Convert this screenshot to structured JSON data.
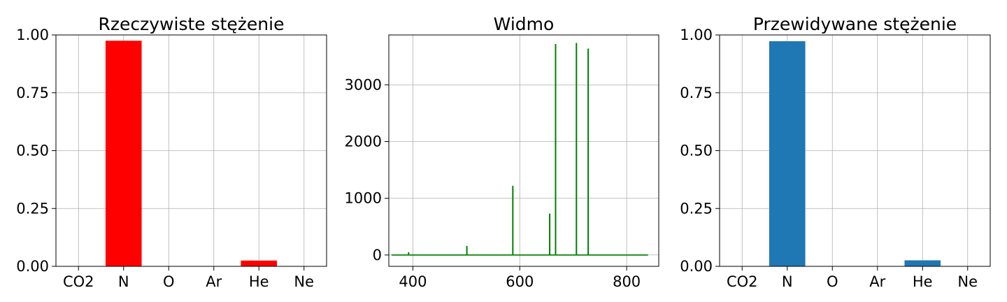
{
  "chart_data": [
    {
      "type": "bar",
      "title": "Rzeczywiste stężenie",
      "categories": [
        "CO2",
        "N",
        "O",
        "Ar",
        "He",
        "Ne"
      ],
      "values": [
        0.0,
        0.975,
        0.0,
        0.0,
        0.025,
        0.0
      ],
      "ylim": [
        0,
        1.0
      ],
      "yticks": [
        "0.00",
        "0.25",
        "0.50",
        "0.75",
        "1.00"
      ],
      "grid": true,
      "color": "#ff0000"
    },
    {
      "type": "line",
      "title": "Widmo",
      "xlim": [
        355,
        860
      ],
      "ylim": [
        -200,
        3880
      ],
      "xticks": [
        "400",
        "600",
        "800"
      ],
      "yticks": [
        "0",
        "1000",
        "2000",
        "3000"
      ],
      "baseline": 0,
      "x_range": [
        360,
        840
      ],
      "peaks": [
        {
          "x": 392,
          "y": 50
        },
        {
          "x": 501,
          "y": 160
        },
        {
          "x": 587,
          "y": 1220
        },
        {
          "x": 656,
          "y": 730
        },
        {
          "x": 667,
          "y": 3720
        },
        {
          "x": 706,
          "y": 3740
        },
        {
          "x": 728,
          "y": 3640
        }
      ],
      "grid": true,
      "color": "#008000"
    },
    {
      "type": "bar",
      "title": "Przewidywane stężenie",
      "categories": [
        "CO2",
        "N",
        "O",
        "Ar",
        "He",
        "Ne"
      ],
      "values": [
        0.0,
        0.973,
        0.0,
        0.0,
        0.026,
        0.0
      ],
      "ylim": [
        0,
        1.0
      ],
      "yticks": [
        "0.00",
        "0.25",
        "0.50",
        "0.75",
        "1.00"
      ],
      "grid": true,
      "color": "#1f77b4"
    }
  ]
}
